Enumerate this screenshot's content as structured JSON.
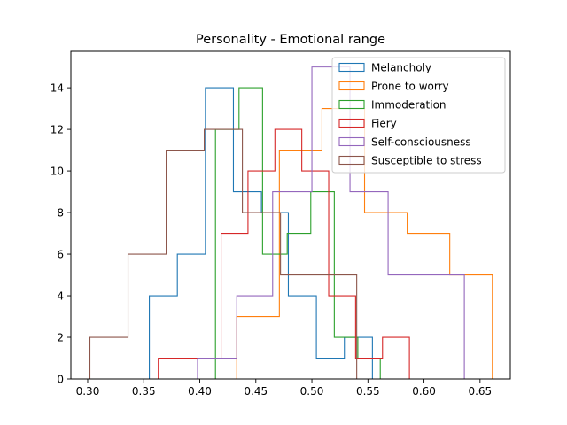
{
  "chart_data": {
    "type": "histogram",
    "title": "Personality - Emotional range",
    "xlabel": "",
    "ylabel": "",
    "xlim": [
      0.285,
      0.677
    ],
    "ylim": [
      0,
      15.75
    ],
    "xticks": [
      0.3,
      0.35,
      0.4,
      0.45,
      0.5,
      0.55,
      0.6,
      0.65
    ],
    "xtick_labels": [
      "0.30",
      "0.35",
      "0.40",
      "0.45",
      "0.50",
      "0.55",
      "0.60",
      "0.65"
    ],
    "yticks": [
      0,
      2,
      4,
      6,
      8,
      10,
      12,
      14
    ],
    "ytick_labels": [
      "0",
      "2",
      "4",
      "6",
      "8",
      "10",
      "12",
      "14"
    ],
    "grid": false,
    "legend_position": "top-right",
    "series": [
      {
        "name": "Melancholy",
        "color": "#1f77b4",
        "bin_edges": [
          0.355,
          0.38,
          0.405,
          0.43,
          0.455,
          0.479,
          0.504,
          0.529,
          0.554
        ],
        "counts": [
          4,
          6,
          14,
          9,
          8,
          4,
          1,
          2
        ]
      },
      {
        "name": "Prone to worry",
        "color": "#ff7f0e",
        "bin_edges": [
          0.433,
          0.471,
          0.509,
          0.547,
          0.585,
          0.623,
          0.661
        ],
        "counts": [
          3,
          11,
          13,
          8,
          7,
          5
        ]
      },
      {
        "name": "Immoderation",
        "color": "#2ca02c",
        "bin_edges": [
          0.414,
          0.435,
          0.456,
          0.478,
          0.499,
          0.52,
          0.541,
          0.561
        ],
        "counts": [
          12,
          14,
          6,
          7,
          9,
          2,
          1
        ]
      },
      {
        "name": "Fiery",
        "color": "#d62728",
        "bin_edges": [
          0.363,
          0.396,
          0.419,
          0.443,
          0.467,
          0.491,
          0.515,
          0.539,
          0.563,
          0.587
        ],
        "counts": [
          1,
          1,
          7,
          10,
          12,
          10,
          4,
          1,
          2
        ]
      },
      {
        "name": "Self-consciousness",
        "color": "#9467bd",
        "bin_edges": [
          0.398,
          0.433,
          0.465,
          0.5,
          0.534,
          0.568,
          0.636
        ],
        "counts": [
          1,
          4,
          9,
          15,
          9,
          5
        ]
      },
      {
        "name": "Susceptible to stress",
        "color": "#8c564b",
        "bin_edges": [
          0.302,
          0.336,
          0.37,
          0.404,
          0.438,
          0.472,
          0.506,
          0.54
        ],
        "counts": [
          2,
          6,
          11,
          12,
          8,
          5,
          5
        ]
      }
    ]
  }
}
